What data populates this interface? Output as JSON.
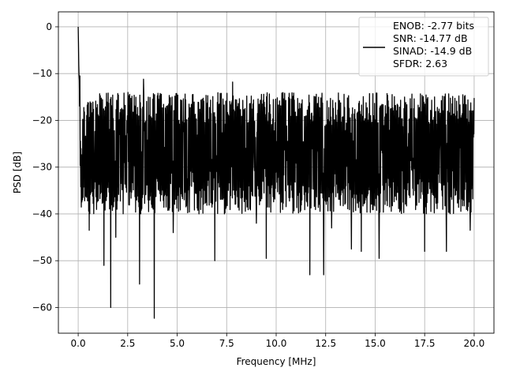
{
  "chart_data": {
    "type": "line",
    "title": "",
    "xlabel": "Frequency [MHz]",
    "ylabel": "PSD [dB]",
    "xlim": [
      -1.0,
      21.0
    ],
    "ylim": [
      -65.5,
      3.2
    ],
    "xticks": [
      0.0,
      2.5,
      5.0,
      7.5,
      10.0,
      12.5,
      15.0,
      17.5,
      20.0
    ],
    "xtick_labels": [
      "0.0",
      "2.5",
      "5.0",
      "7.5",
      "10.0",
      "12.5",
      "15.0",
      "17.5",
      "20.0"
    ],
    "yticks": [
      0,
      -10,
      -20,
      -30,
      -40,
      -50,
      -60
    ],
    "ytick_labels": [
      "0",
      "−10",
      "−20",
      "−30",
      "−40",
      "−50",
      "−60"
    ],
    "grid": true,
    "legend_position": "top-right",
    "legend_lines": [
      "ENOB: -2.77 bits",
      "SNR: -14.77 dB",
      "SINAD: -14.9 dB",
      "SFDR: 2.63"
    ],
    "series": [
      {
        "color": "#000000",
        "style": "noisy spectrum",
        "peak_x": 0.0,
        "peak_y": 0.0,
        "x_range": [
          0.0,
          20.0
        ],
        "band_upper_range": [
          -21,
          -14
        ],
        "band_lower_range": [
          -40,
          -33
        ],
        "floor_mean": -27,
        "spikes": [
          {
            "x": 0.08,
            "y": -10.5
          },
          {
            "x": 0.2,
            "y": -32
          },
          {
            "x": 0.55,
            "y": -43.5
          },
          {
            "x": 1.3,
            "y": -51
          },
          {
            "x": 1.65,
            "y": -60
          },
          {
            "x": 1.9,
            "y": -45
          },
          {
            "x": 3.1,
            "y": -55
          },
          {
            "x": 3.3,
            "y": -11.2
          },
          {
            "x": 3.85,
            "y": -62.3
          },
          {
            "x": 4.8,
            "y": -44
          },
          {
            "x": 6.9,
            "y": -50
          },
          {
            "x": 7.8,
            "y": -11.8
          },
          {
            "x": 9.0,
            "y": -42
          },
          {
            "x": 9.5,
            "y": -49.5
          },
          {
            "x": 11.7,
            "y": -53
          },
          {
            "x": 12.4,
            "y": -53
          },
          {
            "x": 12.8,
            "y": -43
          },
          {
            "x": 13.8,
            "y": -47.5
          },
          {
            "x": 14.3,
            "y": -48
          },
          {
            "x": 15.2,
            "y": -49.5
          },
          {
            "x": 17.5,
            "y": -48
          },
          {
            "x": 18.6,
            "y": -48
          },
          {
            "x": 18.0,
            "y": -15
          },
          {
            "x": 19.8,
            "y": -43.5
          }
        ]
      }
    ]
  }
}
